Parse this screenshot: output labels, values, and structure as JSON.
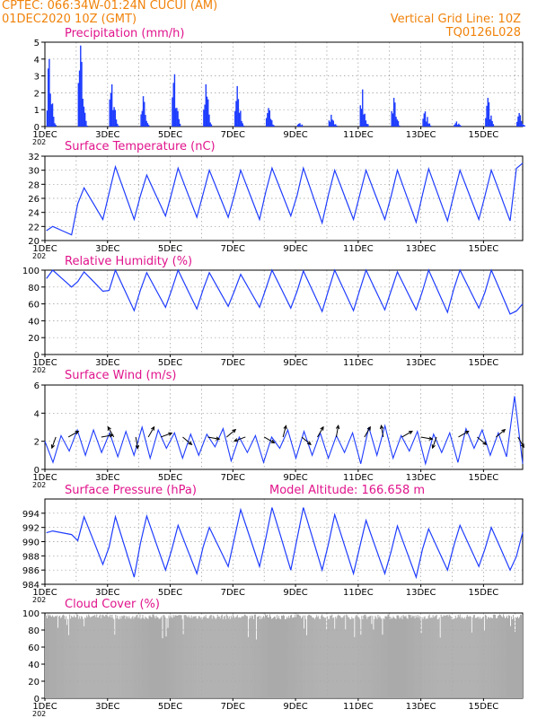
{
  "header": {
    "station": "CPTEC:   066:34W-01:24N   CUCUI (AM)",
    "date": "01DEC2020 10Z (GMT)",
    "grid_note": "Vertical Grid Line: 10Z",
    "code": "TQ0126L028"
  },
  "colors": {
    "header": "#f0820a",
    "title": "#e0148c",
    "line": "#1e3cff",
    "bar": "#1e3cff",
    "cloud": "#aaaaaa",
    "arrow": "#000000"
  },
  "x_ticks": [
    "1DEC",
    "3DEC",
    "5DEC",
    "7DEC",
    "9DEC",
    "11DEC",
    "13DEC",
    "15DEC"
  ],
  "year_stub": "202",
  "model_altitude": "Model Altitude: 166.658  m",
  "chart_data": [
    {
      "type": "bar",
      "title": "Precipitation (mm/h)",
      "ylim": [
        0,
        5
      ],
      "yticks": [
        "0",
        "1",
        "2",
        "3",
        "4",
        "5"
      ],
      "days": [
        {
          "day": "1DEC",
          "peak": 4.0
        },
        {
          "day": "2DEC",
          "peak": 4.8
        },
        {
          "day": "3DEC",
          "peak": 2.5
        },
        {
          "day": "4DEC",
          "peak": 1.8
        },
        {
          "day": "5DEC",
          "peak": 3.1
        },
        {
          "day": "6DEC",
          "peak": 2.5
        },
        {
          "day": "7DEC",
          "peak": 2.4
        },
        {
          "day": "8DEC",
          "peak": 1.1
        },
        {
          "day": "9DEC",
          "peak": 0.2
        },
        {
          "day": "10DEC",
          "peak": 0.7
        },
        {
          "day": "11DEC",
          "peak": 2.2
        },
        {
          "day": "12DEC",
          "peak": 1.7
        },
        {
          "day": "13DEC",
          "peak": 0.9
        },
        {
          "day": "14DEC",
          "peak": 0.3
        },
        {
          "day": "15DEC",
          "peak": 1.7
        },
        {
          "day": "16DEC",
          "peak": 0.8
        }
      ]
    },
    {
      "type": "line",
      "title": "Surface Temperature (nC)",
      "ylim": [
        20,
        32
      ],
      "yticks": [
        "20",
        "22",
        "24",
        "26",
        "28",
        "30",
        "32"
      ],
      "daily_max": [
        22.0,
        27.5,
        30.5,
        29.3,
        30.3,
        30.0,
        30.0,
        30.3,
        30.3,
        30.0,
        30.0,
        30.0,
        30.2,
        30.0,
        30.0,
        31.0
      ],
      "daily_min": [
        20.8,
        23.0,
        23.0,
        23.5,
        23.3,
        23.3,
        23.0,
        23.5,
        22.5,
        23.0,
        23.0,
        22.6,
        22.8,
        23.0,
        22.8,
        29.5
      ]
    },
    {
      "type": "line",
      "title": "Relative Humidity (%)",
      "ylim": [
        0,
        100
      ],
      "yticks": [
        "0",
        "20",
        "40",
        "60",
        "80",
        "100"
      ],
      "daily_max": [
        100,
        98,
        100,
        97,
        100,
        97,
        95,
        100,
        99,
        100,
        100,
        98,
        100,
        100,
        100,
        60
      ],
      "daily_min": [
        80,
        75,
        52,
        56,
        54,
        57,
        56,
        55,
        51,
        52,
        53,
        53,
        50,
        55,
        48,
        43
      ]
    },
    {
      "type": "line",
      "title": "Surface Wind (m/s)",
      "ylim": [
        0,
        6
      ],
      "yticks": [
        "0",
        "2",
        "4",
        "6"
      ],
      "speed": [
        2.0,
        0.5,
        2.4,
        1.3,
        2.8,
        1.0,
        2.8,
        1.2,
        2.6,
        0.9,
        2.7,
        1.0,
        3.0,
        0.8,
        2.8,
        1.5,
        2.6,
        0.8,
        2.5,
        1.0,
        2.5,
        1.6,
        2.9,
        0.6,
        2.3,
        1.2,
        2.4,
        0.5,
        2.3,
        1.5,
        2.8,
        0.8,
        2.7,
        1.0,
        2.6,
        0.8,
        2.4,
        1.2,
        2.6,
        0.4,
        3.0,
        1.0,
        3.1,
        0.8,
        2.4,
        1.3,
        2.7,
        0.4,
        2.5,
        1.2,
        2.6,
        0.5,
        2.9,
        1.5,
        2.8,
        1.0,
        2.6,
        0.9,
        5.2,
        0.4
      ],
      "arrows": [
        {
          "t": 0.35,
          "angle": 250
        },
        {
          "t": 0.75,
          "angle": 30
        },
        {
          "t": 1.8,
          "angle": 10
        },
        {
          "t": 2.2,
          "angle": 120
        },
        {
          "t": 2.9,
          "angle": 280
        },
        {
          "t": 3.3,
          "angle": 60
        },
        {
          "t": 3.7,
          "angle": 20
        },
        {
          "t": 4.4,
          "angle": 320
        },
        {
          "t": 5.2,
          "angle": 350
        },
        {
          "t": 5.8,
          "angle": 40
        },
        {
          "t": 6.4,
          "angle": 200
        },
        {
          "t": 7.0,
          "angle": 330
        },
        {
          "t": 7.6,
          "angle": 75
        },
        {
          "t": 8.2,
          "angle": 320
        },
        {
          "t": 8.7,
          "angle": 60
        },
        {
          "t": 9.3,
          "angle": 80
        },
        {
          "t": 10.2,
          "angle": 60
        },
        {
          "t": 10.8,
          "angle": 100
        },
        {
          "t": 11.4,
          "angle": 30
        },
        {
          "t": 12.0,
          "angle": 350
        },
        {
          "t": 12.5,
          "angle": 250
        },
        {
          "t": 13.2,
          "angle": 30
        },
        {
          "t": 13.8,
          "angle": 320
        },
        {
          "t": 14.4,
          "angle": 40
        },
        {
          "t": 15.1,
          "angle": 300
        }
      ]
    },
    {
      "type": "line",
      "title": "Surface Pressure (hPa)",
      "ylim": [
        984,
        996
      ],
      "yticks": [
        "984",
        "986",
        "988",
        "990",
        "992",
        "994"
      ],
      "daily_max": [
        991.5,
        993.5,
        993.5,
        993.6,
        992.3,
        992.0,
        994.5,
        994.8,
        994.8,
        993.8,
        993.0,
        992.2,
        991.8,
        992.3,
        992.0,
        991.3
      ],
      "daily_min": [
        991.0,
        986.8,
        985.0,
        986.0,
        985.5,
        986.5,
        986.5,
        986.0,
        986.0,
        985.5,
        985.5,
        985.0,
        986.0,
        986.5,
        986.0,
        984.5
      ]
    },
    {
      "type": "area",
      "title": "Cloud Cover (%)",
      "ylim": [
        0,
        100
      ],
      "yticks": [
        "0",
        "20",
        "40",
        "60",
        "80",
        "100"
      ],
      "typical_cover": 95
    }
  ]
}
